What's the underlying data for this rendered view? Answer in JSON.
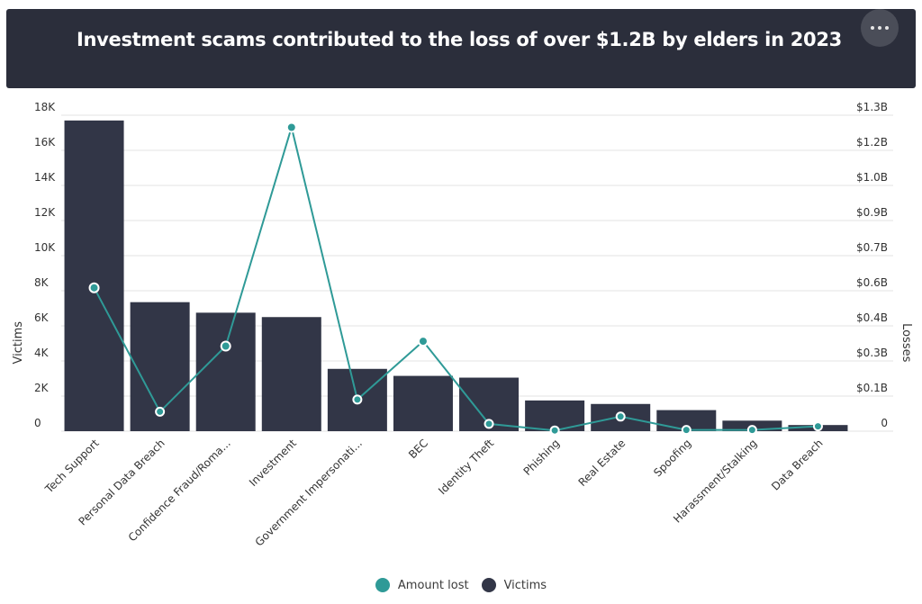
{
  "header": {
    "title": "Investment scams contributed to the loss of over $1.2B by elders in 2023",
    "menu_icon": "more-horizontal-icon"
  },
  "colors": {
    "bar": "#323647",
    "line": "#2f9a97",
    "grid": "#e3e3e3",
    "header_bg": "#2b2e3b"
  },
  "legend": [
    {
      "label": "Amount lost",
      "color": "#2f9a97"
    },
    {
      "label": "Victims",
      "color": "#323647"
    }
  ],
  "chart_data": {
    "type": "bar+line",
    "title": "Investment scams contributed to the loss of over $1.2B by elders in 2023",
    "categories": [
      "Tech Support",
      "Personal Data Breach",
      "Confidence Fraud/Roma...",
      "Investment",
      "Government Impersonati...",
      "BEC",
      "Identity Theft",
      "Phishing",
      "Real Estate",
      "Spoofing",
      "Harassment/Stalking",
      "Data Breach"
    ],
    "series": [
      {
        "name": "Victims",
        "type": "bar",
        "axis": "left",
        "values": [
          17700,
          7350,
          6750,
          6500,
          3550,
          3150,
          3050,
          1750,
          1550,
          1200,
          600,
          350
        ]
      },
      {
        "name": "Amount lost",
        "type": "line",
        "axis": "right",
        "values": [
          0.59,
          0.08,
          0.35,
          1.25,
          0.13,
          0.37,
          0.03,
          0.003,
          0.06,
          0.005,
          0.005,
          0.02
        ]
      }
    ],
    "ylabel": "Victims",
    "ylabel_right": "Losses",
    "ylim": [
      0,
      18000
    ],
    "ylim_right": [
      0,
      1.3
    ],
    "yticks_left": [
      {
        "value": 0,
        "label": "0"
      },
      {
        "value": 2000,
        "label": "2K"
      },
      {
        "value": 4000,
        "label": "4K"
      },
      {
        "value": 6000,
        "label": "6K"
      },
      {
        "value": 8000,
        "label": "8K"
      },
      {
        "value": 10000,
        "label": "10K"
      },
      {
        "value": 12000,
        "label": "12K"
      },
      {
        "value": 14000,
        "label": "14K"
      },
      {
        "value": 16000,
        "label": "16K"
      },
      {
        "value": 18000,
        "label": "18K"
      }
    ],
    "yticks_right_labels": [
      "0",
      "$0.1B",
      "$0.3B",
      "$0.4B",
      "$0.6B",
      "$0.7B",
      "$0.9B",
      "$1.0B",
      "$1.2B",
      "$1.3B"
    ]
  }
}
